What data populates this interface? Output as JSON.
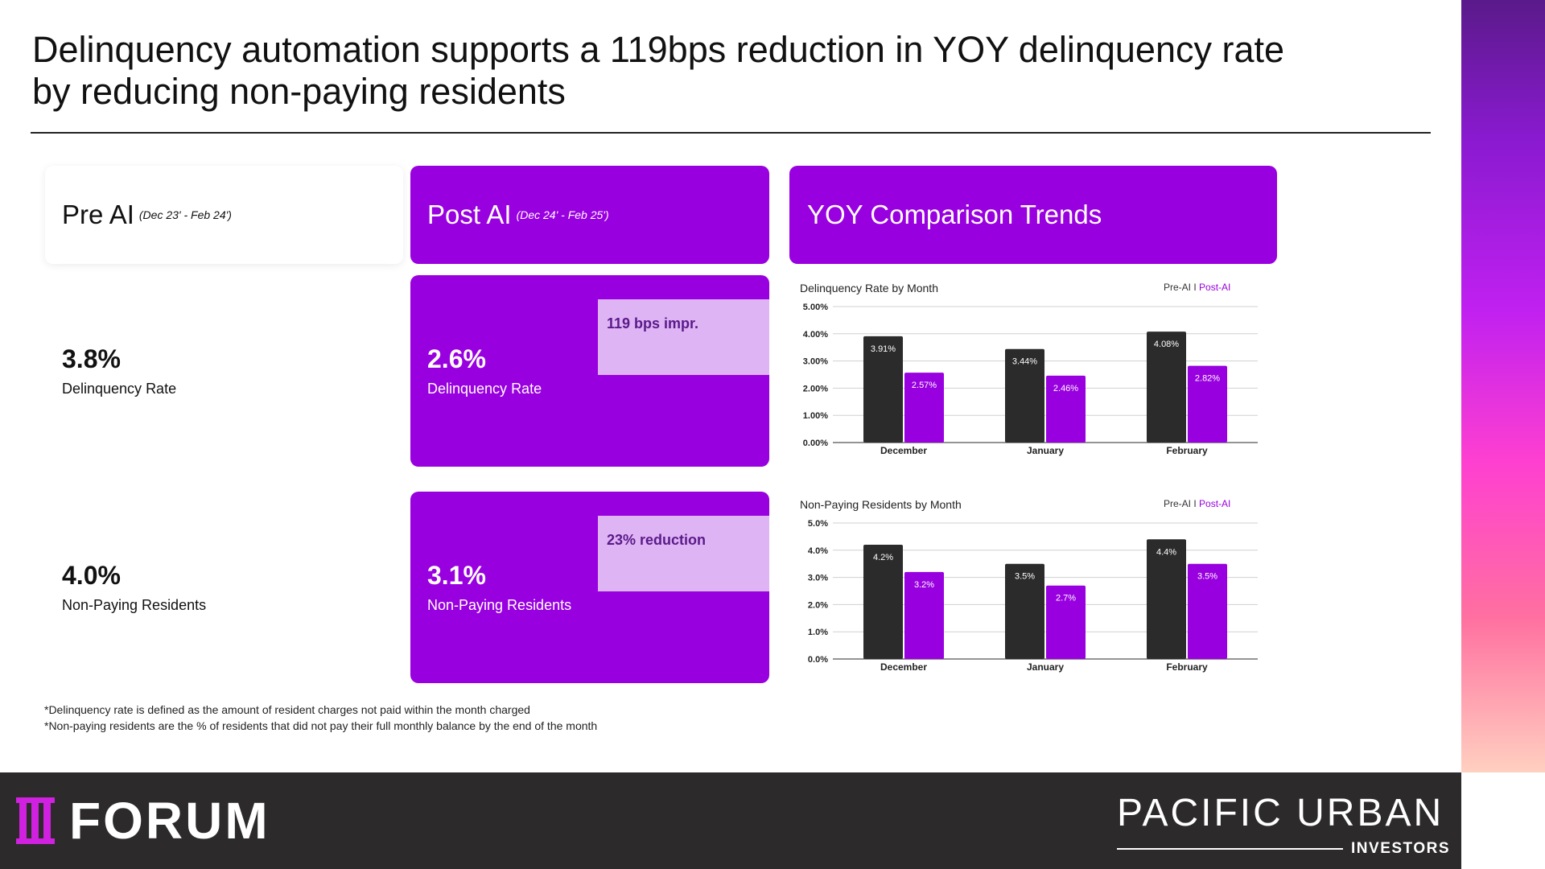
{
  "title": {
    "line1": "Delinquency automation supports a 119bps reduction in YOY delinquency rate",
    "line2": "by reducing non-paying residents"
  },
  "pre": {
    "title": "Pre AI",
    "period": "(Dec 23' - Feb 24')",
    "delinquency_value": "3.8%",
    "delinquency_label": "Delinquency Rate",
    "nonpaying_value": "4.0%",
    "nonpaying_label": "Non-Paying Residents"
  },
  "post": {
    "title": "Post AI",
    "period": "(Dec 24' - Feb 25')",
    "delinquency_value": "2.6%",
    "delinquency_label": "Delinquency Rate",
    "delinquency_note": "119 bps impr.",
    "nonpaying_value": "3.1%",
    "nonpaying_label": "Non-Paying Residents",
    "nonpaying_note": "23% reduction"
  },
  "yoy": {
    "title": "YOY Comparison Trends"
  },
  "legend": {
    "pre": "Pre-AI",
    "sep": " I ",
    "post": "Post-AI"
  },
  "colors": {
    "pre": "#2b2b2b",
    "post": "#9900e0",
    "accent": "#9900e0",
    "note_bg": "#deb4f4"
  },
  "chart_data": [
    {
      "type": "bar",
      "title": "Delinquency Rate by Month",
      "categories": [
        "December",
        "January",
        "February"
      ],
      "series": [
        {
          "name": "Pre-AI",
          "values": [
            3.91,
            3.44,
            4.08
          ]
        },
        {
          "name": "Post-AI",
          "values": [
            2.57,
            2.46,
            2.82
          ]
        }
      ],
      "value_labels": [
        [
          "3.91%",
          "3.44%",
          "4.08%"
        ],
        [
          "2.57%",
          "2.46%",
          "2.82%"
        ]
      ],
      "yticks": [
        "0.00%",
        "1.00%",
        "2.00%",
        "3.00%",
        "4.00%",
        "5.00%"
      ],
      "ylim": [
        0,
        5
      ],
      "grid": true,
      "legend": "top-right"
    },
    {
      "type": "bar",
      "title": "Non-Paying Residents by Month",
      "categories": [
        "December",
        "January",
        "February"
      ],
      "series": [
        {
          "name": "Pre-AI",
          "values": [
            4.2,
            3.5,
            4.4
          ]
        },
        {
          "name": "Post-AI",
          "values": [
            3.2,
            2.7,
            3.5
          ]
        }
      ],
      "value_labels": [
        [
          "4.2%",
          "3.5%",
          "4.4%"
        ],
        [
          "3.2%",
          "2.7%",
          "3.5%"
        ]
      ],
      "yticks": [
        "0.0%",
        "1.0%",
        "2.0%",
        "3.0%",
        "4.0%",
        "5.0%"
      ],
      "ylim": [
        0,
        5
      ],
      "grid": true,
      "legend": "top-right"
    }
  ],
  "footnotes": [
    "*Delinquency rate is defined as the amount of resident charges not paid within the month charged",
    "*Non-paying residents are the % of residents that did not pay their full monthly balance by the end of the month"
  ],
  "footer": {
    "forum": "FORUM",
    "pui_main": "PACIFIC URBAN",
    "pui_sub": "INVESTORS"
  }
}
